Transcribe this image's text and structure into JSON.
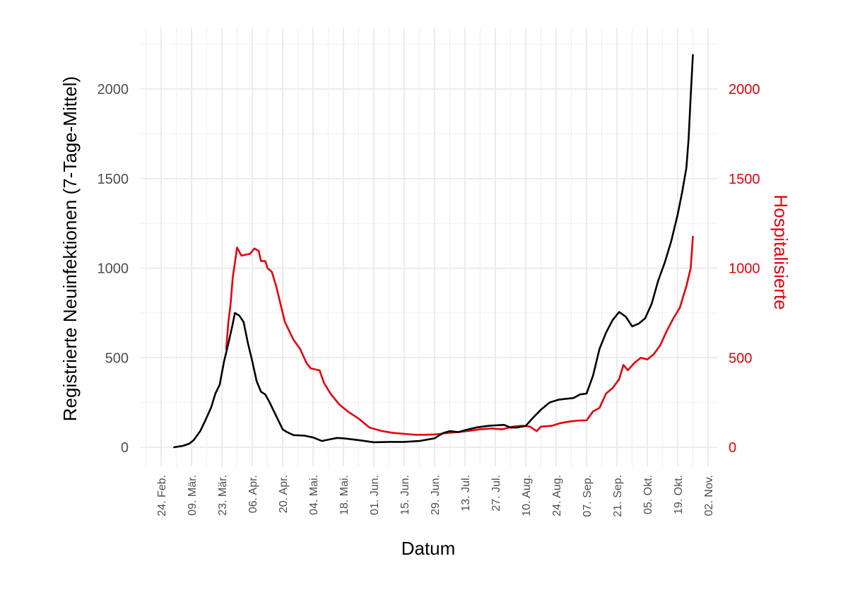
{
  "chart_data": {
    "type": "line",
    "xlabel": "Datum",
    "ylabel_left": "Registrierte Neuinfektionen (7-Tage-Mittel)",
    "ylabel_right": "Hospitalisierte",
    "x_tick_labels": [
      "24. Feb.",
      "09. Mär.",
      "23. Mär.",
      "06. Apr.",
      "20. Apr.",
      "04. Mai.",
      "18. Mai.",
      "01. Jun.",
      "15. Jun.",
      "29. Jun.",
      "13. Jul.",
      "27. Jul.",
      "10. Aug.",
      "24. Aug.",
      "07. Sep.",
      "21. Sep.",
      "05. Okt.",
      "19. Okt.",
      "02. Nov."
    ],
    "x_tick_dates": [
      "2020-02-24",
      "2020-03-09",
      "2020-03-23",
      "2020-04-06",
      "2020-04-20",
      "2020-05-04",
      "2020-05-18",
      "2020-06-01",
      "2020-06-15",
      "2020-06-29",
      "2020-07-13",
      "2020-07-27",
      "2020-08-10",
      "2020-08-24",
      "2020-09-07",
      "2020-09-21",
      "2020-10-05",
      "2020-10-19",
      "2020-11-02"
    ],
    "y_ticks_left": [
      "0",
      "500",
      "1000",
      "1500",
      "2000"
    ],
    "y_ticks_right": [
      "0",
      "500",
      "1000",
      "1500",
      "2000"
    ],
    "ylim": [
      -50,
      2300
    ],
    "grid": true,
    "series": [
      {
        "color": "#000000",
        "axis": "left",
        "points": [
          [
            "2020-03-01",
            0
          ],
          [
            "2020-03-05",
            8
          ],
          [
            "2020-03-08",
            20
          ],
          [
            "2020-03-10",
            40
          ],
          [
            "2020-03-13",
            90
          ],
          [
            "2020-03-15",
            140
          ],
          [
            "2020-03-18",
            220
          ],
          [
            "2020-03-20",
            300
          ],
          [
            "2020-03-22",
            350
          ],
          [
            "2020-03-24",
            480
          ],
          [
            "2020-03-26",
            580
          ],
          [
            "2020-03-28",
            690
          ],
          [
            "2020-03-29",
            750
          ],
          [
            "2020-03-31",
            735
          ],
          [
            "2020-04-02",
            700
          ],
          [
            "2020-04-04",
            580
          ],
          [
            "2020-04-06",
            480
          ],
          [
            "2020-04-08",
            370
          ],
          [
            "2020-04-10",
            310
          ],
          [
            "2020-04-12",
            295
          ],
          [
            "2020-04-14",
            250
          ],
          [
            "2020-04-16",
            200
          ],
          [
            "2020-04-18",
            150
          ],
          [
            "2020-04-20",
            100
          ],
          [
            "2020-04-22",
            85
          ],
          [
            "2020-04-25",
            68
          ],
          [
            "2020-04-30",
            65
          ],
          [
            "2020-05-04",
            55
          ],
          [
            "2020-05-08",
            35
          ],
          [
            "2020-05-12",
            45
          ],
          [
            "2020-05-15",
            52
          ],
          [
            "2020-05-18",
            50
          ],
          [
            "2020-05-25",
            40
          ],
          [
            "2020-06-01",
            28
          ],
          [
            "2020-06-08",
            30
          ],
          [
            "2020-06-15",
            30
          ],
          [
            "2020-06-22",
            35
          ],
          [
            "2020-06-29",
            50
          ],
          [
            "2020-07-03",
            80
          ],
          [
            "2020-07-06",
            90
          ],
          [
            "2020-07-10",
            85
          ],
          [
            "2020-07-13",
            95
          ],
          [
            "2020-07-18",
            110
          ],
          [
            "2020-07-24",
            120
          ],
          [
            "2020-07-31",
            125
          ],
          [
            "2020-08-03",
            110
          ],
          [
            "2020-08-06",
            110
          ],
          [
            "2020-08-10",
            120
          ],
          [
            "2020-08-13",
            160
          ],
          [
            "2020-08-17",
            210
          ],
          [
            "2020-08-21",
            250
          ],
          [
            "2020-08-25",
            265
          ],
          [
            "2020-08-28",
            270
          ],
          [
            "2020-09-01",
            275
          ],
          [
            "2020-09-04",
            295
          ],
          [
            "2020-09-07",
            300
          ],
          [
            "2020-09-10",
            400
          ],
          [
            "2020-09-13",
            550
          ],
          [
            "2020-09-16",
            640
          ],
          [
            "2020-09-19",
            710
          ],
          [
            "2020-09-22",
            755
          ],
          [
            "2020-09-25",
            730
          ],
          [
            "2020-09-28",
            675
          ],
          [
            "2020-10-01",
            690
          ],
          [
            "2020-10-04",
            720
          ],
          [
            "2020-10-07",
            800
          ],
          [
            "2020-10-10",
            930
          ],
          [
            "2020-10-13",
            1030
          ],
          [
            "2020-10-16",
            1150
          ],
          [
            "2020-10-19",
            1300
          ],
          [
            "2020-10-21",
            1420
          ],
          [
            "2020-10-23",
            1560
          ],
          [
            "2020-10-24",
            1720
          ],
          [
            "2020-10-25",
            1960
          ],
          [
            "2020-10-26",
            2190
          ]
        ]
      },
      {
        "color": "#e8000b",
        "axis": "right",
        "points": [
          [
            "2020-03-25",
            550
          ],
          [
            "2020-03-26",
            700
          ],
          [
            "2020-03-27",
            800
          ],
          [
            "2020-03-28",
            950
          ],
          [
            "2020-03-29",
            1030
          ],
          [
            "2020-03-30",
            1115
          ],
          [
            "2020-04-01",
            1070
          ],
          [
            "2020-04-03",
            1075
          ],
          [
            "2020-04-05",
            1080
          ],
          [
            "2020-04-07",
            1110
          ],
          [
            "2020-04-09",
            1095
          ],
          [
            "2020-04-10",
            1040
          ],
          [
            "2020-04-12",
            1040
          ],
          [
            "2020-04-13",
            1000
          ],
          [
            "2020-04-15",
            980
          ],
          [
            "2020-04-17",
            900
          ],
          [
            "2020-04-19",
            800
          ],
          [
            "2020-04-21",
            700
          ],
          [
            "2020-04-23",
            650
          ],
          [
            "2020-04-25",
            600
          ],
          [
            "2020-04-28",
            550
          ],
          [
            "2020-05-01",
            470
          ],
          [
            "2020-05-03",
            440
          ],
          [
            "2020-05-07",
            430
          ],
          [
            "2020-05-09",
            360
          ],
          [
            "2020-05-12",
            300
          ],
          [
            "2020-05-16",
            240
          ],
          [
            "2020-05-20",
            200
          ],
          [
            "2020-05-25",
            160
          ],
          [
            "2020-05-30",
            110
          ],
          [
            "2020-06-05",
            90
          ],
          [
            "2020-06-10",
            80
          ],
          [
            "2020-06-15",
            75
          ],
          [
            "2020-06-20",
            70
          ],
          [
            "2020-06-25",
            70
          ],
          [
            "2020-06-30",
            72
          ],
          [
            "2020-07-05",
            80
          ],
          [
            "2020-07-10",
            85
          ],
          [
            "2020-07-15",
            92
          ],
          [
            "2020-07-20",
            100
          ],
          [
            "2020-07-25",
            105
          ],
          [
            "2020-07-30",
            100
          ],
          [
            "2020-08-04",
            115
          ],
          [
            "2020-08-08",
            120
          ],
          [
            "2020-08-12",
            115
          ],
          [
            "2020-08-15",
            90
          ],
          [
            "2020-08-17",
            115
          ],
          [
            "2020-08-22",
            120
          ],
          [
            "2020-08-26",
            135
          ],
          [
            "2020-08-31",
            145
          ],
          [
            "2020-09-04",
            150
          ],
          [
            "2020-09-07",
            150
          ],
          [
            "2020-09-10",
            200
          ],
          [
            "2020-09-13",
            220
          ],
          [
            "2020-09-16",
            300
          ],
          [
            "2020-09-19",
            330
          ],
          [
            "2020-09-22",
            380
          ],
          [
            "2020-09-24",
            460
          ],
          [
            "2020-09-26",
            430
          ],
          [
            "2020-09-29",
            470
          ],
          [
            "2020-10-02",
            500
          ],
          [
            "2020-10-05",
            490
          ],
          [
            "2020-10-08",
            520
          ],
          [
            "2020-10-11",
            570
          ],
          [
            "2020-10-14",
            650
          ],
          [
            "2020-10-17",
            720
          ],
          [
            "2020-10-20",
            780
          ],
          [
            "2020-10-23",
            900
          ],
          [
            "2020-10-25",
            1000
          ],
          [
            "2020-10-26",
            1175
          ]
        ]
      }
    ]
  }
}
